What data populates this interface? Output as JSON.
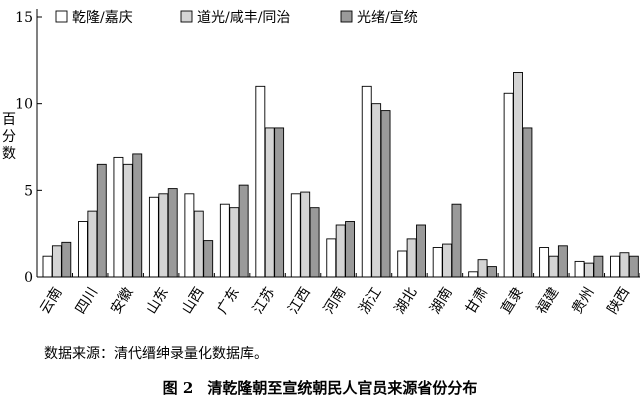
{
  "chart_data": {
    "type": "bar",
    "categories": [
      "云南",
      "四川",
      "安徽",
      "山东",
      "山西",
      "广东",
      "江苏",
      "江西",
      "河南",
      "浙江",
      "湖北",
      "湖南",
      "甘肃",
      "直隶",
      "福建",
      "贵州",
      "陕西"
    ],
    "series": [
      {
        "name": "乾隆/嘉庆",
        "color": "#ffffff",
        "values": [
          1.2,
          3.2,
          6.9,
          4.6,
          4.8,
          4.2,
          11.0,
          4.8,
          2.2,
          11.0,
          1.5,
          1.7,
          0.3,
          10.6,
          1.7,
          0.9,
          1.2
        ]
      },
      {
        "name": "道光/咸丰/同治",
        "color": "#d4d4d4",
        "values": [
          1.8,
          3.8,
          6.5,
          4.8,
          3.8,
          4.0,
          8.6,
          4.9,
          3.0,
          10.0,
          2.2,
          1.9,
          1.0,
          11.8,
          1.2,
          0.8,
          1.4
        ]
      },
      {
        "name": "光绪/宣统",
        "color": "#9a9a9a",
        "values": [
          2.0,
          6.5,
          7.1,
          5.1,
          2.1,
          5.3,
          8.6,
          4.0,
          3.2,
          9.6,
          3.0,
          4.2,
          0.6,
          8.6,
          1.8,
          1.2,
          1.2
        ]
      }
    ],
    "ylim": [
      0,
      15
    ],
    "yticks": [
      "0",
      "5",
      "10",
      "15"
    ],
    "ylabel": [
      "百",
      "分",
      "数"
    ],
    "legend_position": "top",
    "grid": false
  },
  "source_note": "数据来源：清代缙绅录量化数据库。",
  "caption": {
    "number": "图 2",
    "title": "清乾隆朝至宣统朝民人官员来源省份分布"
  }
}
